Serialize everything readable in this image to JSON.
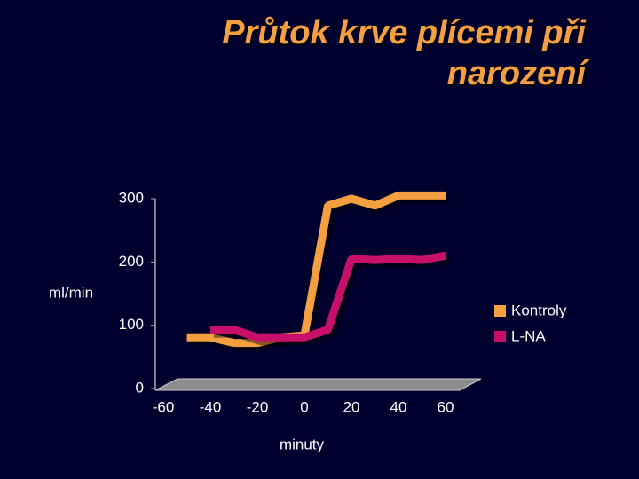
{
  "chart_data": {
    "type": "line",
    "title": "Průtok krve plícemi při narození",
    "x_label": "minuty",
    "y_label": "ml/min",
    "x": [
      -50,
      -40,
      -30,
      -20,
      -10,
      0,
      10,
      20,
      30,
      40,
      50,
      60
    ],
    "series": [
      {
        "name": "Kontroly",
        "color": "#f4a040",
        "values": [
          81,
          81,
          72,
          72,
          81,
          84,
          289,
          300,
          289,
          305,
          305,
          305
        ]
      },
      {
        "name": "L-NA",
        "color": "#c8106a",
        "values": [
          null,
          93,
          93,
          81,
          81,
          81,
          93,
          205,
          203,
          205,
          203,
          210
        ]
      }
    ],
    "xlim": [
      -60,
      60
    ],
    "xticks": [
      -60,
      -40,
      -20,
      0,
      20,
      40,
      60
    ],
    "ylim": [
      0,
      300
    ],
    "yticks": [
      0,
      100,
      200,
      300
    ],
    "legend": "right"
  }
}
